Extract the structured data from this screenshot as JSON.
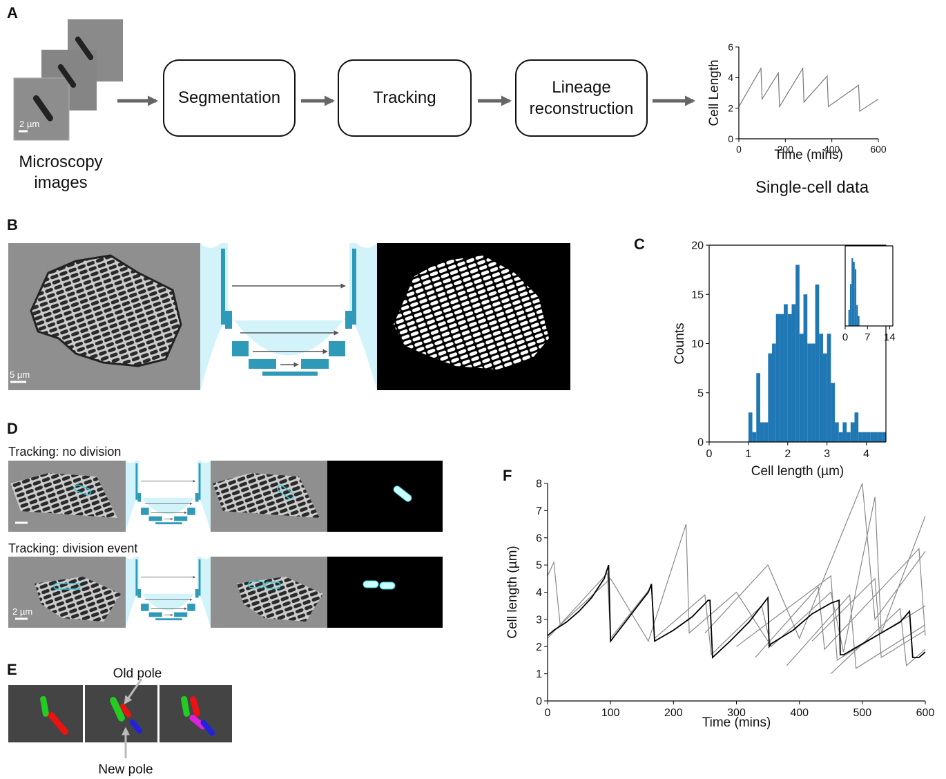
{
  "panels": {
    "A": "A",
    "B": "B",
    "C": "C",
    "D": "D",
    "E": "E",
    "F": "F",
    "microscopy": [
      "Microscopy",
      "images"
    ],
    "scale_a": "2 µm",
    "segmentation": "Segmentation",
    "tracking": "Tracking",
    "lineage": [
      "Lineage",
      "reconstruction"
    ],
    "single_cell": "Single-cell data",
    "scale_b": "5 µm",
    "tracking_no_division": "Tracking: no division",
    "tracking_division": "Tracking: division event",
    "scale_d": "2 µm",
    "old_pole": "Old pole",
    "new_pole": "New pole"
  },
  "chart_data": [
    {
      "type": "line",
      "xlabel": "Time (mins)",
      "ylabel": "Cell Length",
      "xlim": [
        0,
        600
      ],
      "ylim": [
        0,
        6
      ],
      "xticks": [
        0,
        200,
        400,
        600
      ],
      "yticks": [
        0,
        2,
        4,
        6
      ],
      "series": [
        {
          "color": "#777777",
          "x": [
            0,
            95,
            100,
            170,
            175,
            275,
            280,
            380,
            385,
            515,
            520,
            600
          ],
          "values": [
            2.1,
            4.6,
            2.6,
            4.3,
            2.1,
            4.6,
            2.4,
            4.1,
            2.1,
            3.5,
            1.8,
            2.6
          ]
        }
      ]
    },
    {
      "type": "histogram",
      "xlabel": "Cell length (µm)",
      "ylabel": "Counts",
      "color": "#1f77b4",
      "xlim": [
        0,
        4.5
      ],
      "ylim": [
        0,
        20
      ],
      "xticks": [
        0,
        1,
        2,
        3,
        4
      ],
      "yticks": [
        0,
        5,
        10,
        15,
        20
      ],
      "bins": [
        1.0,
        1.1,
        1.2,
        1.3,
        1.4,
        1.5,
        1.6,
        1.7,
        1.8,
        1.9,
        2.0,
        2.1,
        2.2,
        2.3,
        2.4,
        2.5,
        2.6,
        2.7,
        2.8,
        2.9,
        3.0,
        3.1,
        3.2,
        3.3,
        3.4,
        3.5,
        3.6,
        3.7,
        3.8,
        3.9,
        4.0,
        4.1,
        4.2,
        4.3,
        4.4,
        4.5
      ],
      "values": [
        3,
        1,
        7,
        2,
        2,
        9,
        10,
        13,
        13,
        14,
        13,
        14,
        18,
        11,
        15,
        10,
        10,
        16,
        11,
        9,
        11,
        6,
        2,
        1,
        2,
        1,
        2,
        3,
        1,
        1,
        1,
        1,
        1,
        1,
        1
      ]
    },
    {
      "type": "histogram",
      "color": "#1f77b4",
      "xlim": [
        0,
        15
      ],
      "ylim": [
        0,
        65
      ],
      "xticks": [
        0,
        7,
        14
      ],
      "bins": [
        1.0,
        1.5,
        2.0,
        2.5,
        3.0,
        3.5,
        4.0,
        4.5
      ],
      "values": [
        13,
        34,
        55,
        52,
        46,
        17,
        8
      ]
    },
    {
      "type": "line",
      "xlabel": "Time (mins)",
      "ylabel": "Cell length (µm)",
      "xlim": [
        0,
        600
      ],
      "ylim": [
        0,
        8
      ],
      "xticks": [
        0,
        100,
        200,
        300,
        400,
        500,
        600
      ],
      "yticks": [
        0,
        1,
        2,
        3,
        4,
        5,
        6,
        7,
        8
      ],
      "series": [
        {
          "color": "#888888",
          "x": [
            0,
            10,
            20,
            100,
            160,
            220,
            225,
            300,
            350
          ],
          "values": [
            4.6,
            5.1,
            2.8,
            4.5,
            2.2,
            6.5,
            2.5,
            4.0,
            2.2
          ]
        },
        {
          "color": "#888888",
          "x": [
            0,
            95,
            100,
            165,
            170,
            250,
            260,
            340,
            355,
            450,
            470,
            520,
            530,
            600
          ],
          "values": [
            2.3,
            4.7,
            2.3,
            4.2,
            2.3,
            3.9,
            1.7,
            3.5,
            2.0,
            4.0,
            1.8,
            7.5,
            2.5,
            6.8
          ]
        },
        {
          "color": "#888888",
          "x": [
            250,
            350,
            400,
            500,
            520,
            600
          ],
          "values": [
            2.5,
            5.0,
            2.3,
            8.0,
            3.0,
            5.5
          ]
        },
        {
          "color": "#888888",
          "x": [
            300,
            450,
            460,
            600
          ],
          "values": [
            2.0,
            4.6,
            1.5,
            3.5
          ]
        },
        {
          "color": "#888888",
          "x": [
            380,
            480,
            490,
            600
          ],
          "values": [
            1.3,
            3.9,
            1.2,
            2.8
          ]
        },
        {
          "color": "#888888",
          "x": [
            420,
            520,
            530,
            600
          ],
          "values": [
            2.2,
            4.5,
            1.6,
            2.6
          ]
        },
        {
          "color": "#888888",
          "x": [
            450,
            560,
            570,
            600
          ],
          "values": [
            1.0,
            3.4,
            1.3,
            1.9
          ]
        },
        {
          "color": "#888888",
          "x": [
            330,
            430,
            440,
            590,
            600
          ],
          "values": [
            1.6,
            4.2,
            1.9,
            5.6,
            2.4
          ]
        },
        {
          "color": "#000000",
          "x": [
            0,
            10,
            30,
            50,
            70,
            90,
            97,
            100,
            120,
            140,
            160,
            165,
            170,
            200,
            230,
            255,
            258,
            262,
            290,
            320,
            350,
            352,
            355,
            390,
            420,
            450,
            463,
            465,
            470,
            500,
            530,
            560,
            575,
            580,
            590,
            600
          ],
          "values": [
            2.4,
            2.6,
            2.9,
            3.3,
            3.8,
            4.5,
            5.0,
            2.2,
            2.8,
            3.4,
            4.0,
            4.3,
            2.2,
            2.6,
            3.1,
            3.7,
            3.7,
            1.6,
            2.2,
            2.9,
            3.8,
            2.0,
            2.1,
            2.6,
            3.2,
            3.6,
            3.7,
            1.7,
            1.7,
            2.1,
            2.5,
            2.9,
            3.3,
            1.6,
            1.6,
            1.8
          ]
        }
      ]
    }
  ]
}
